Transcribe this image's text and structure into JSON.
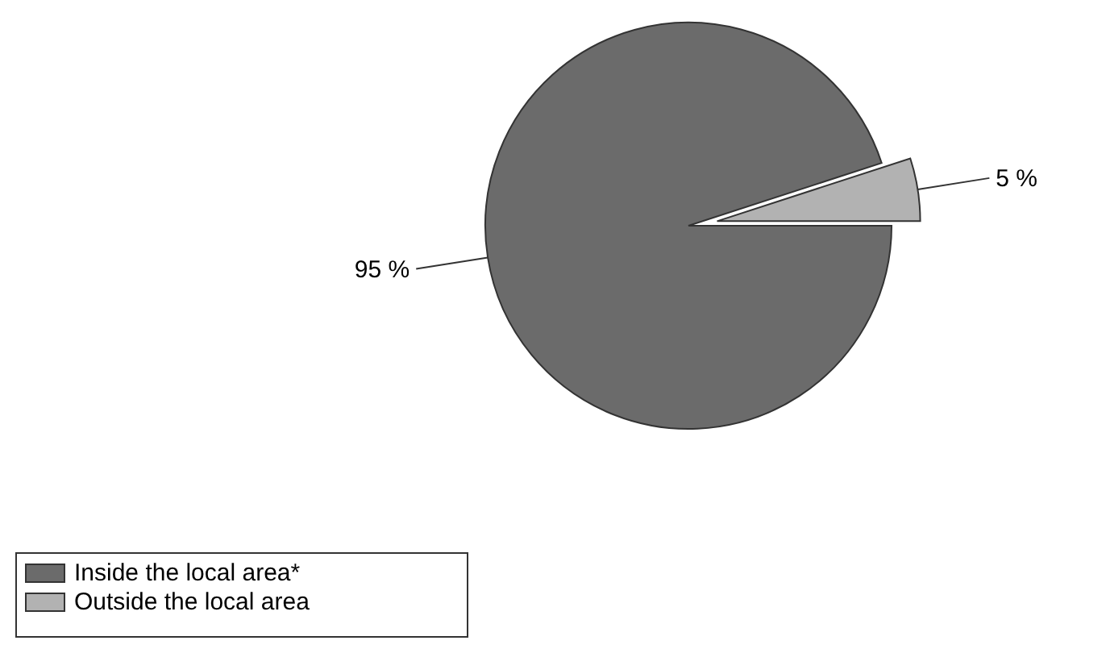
{
  "chart_data": {
    "type": "pie",
    "categories": [
      "Inside the local area*",
      "Outside the local area"
    ],
    "values": [
      95,
      5
    ],
    "colors": [
      "#6b6b6b",
      "#b2b2b2"
    ],
    "value_labels": [
      "95 %",
      "5 %"
    ],
    "legend": "bottom left"
  }
}
